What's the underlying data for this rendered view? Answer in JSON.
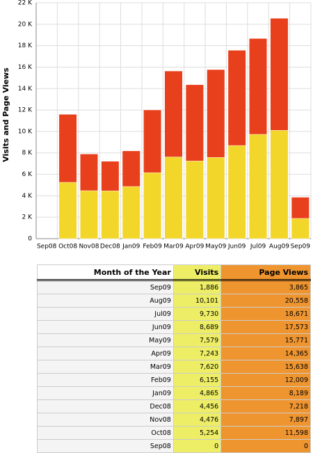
{
  "chart_data": {
    "type": "bar",
    "ylabel": "Visits and Page Views",
    "categories": [
      "Sep08",
      "Oct08",
      "Nov08",
      "Dec08",
      "Jan09",
      "Feb09",
      "Mar09",
      "Apr09",
      "May09",
      "Jun09",
      "Jul09",
      "Aug09",
      "Sep09"
    ],
    "series": [
      {
        "color": "#e8401c",
        "values": [
          0,
          11598,
          7897,
          7218,
          8189,
          12009,
          15638,
          14365,
          15771,
          17573,
          18671,
          20558,
          3865
        ]
      },
      {
        "color": "#f3d62a",
        "values": [
          0,
          5254,
          4476,
          4456,
          4865,
          6155,
          7620,
          7243,
          7579,
          8689,
          9730,
          10101,
          1886
        ]
      }
    ],
    "ylim": [
      0,
      22000
    ],
    "yticks": [
      0,
      {
        "value": 2000,
        "label": "2 K"
      },
      {
        "value": 4000,
        "label": "4 K"
      },
      {
        "value": 6000,
        "label": "6 K"
      },
      {
        "value": 8000,
        "label": "8 K"
      },
      {
        "value": 10000,
        "label": "10 K"
      },
      {
        "value": 12000,
        "label": "12 K"
      },
      {
        "value": 14000,
        "label": "14 K"
      },
      {
        "value": 16000,
        "label": "16 K"
      },
      {
        "value": 18000,
        "label": "18 K"
      },
      {
        "value": 20000,
        "label": "20 K"
      },
      {
        "value": 22000,
        "label": "22 K"
      }
    ],
    "grid": true
  },
  "table": {
    "header": [
      "Month of the Year",
      "Visits",
      "Page Views"
    ],
    "rows": [
      [
        "Sep09",
        "1,886",
        "3,865"
      ],
      [
        "Aug09",
        "10,101",
        "20,558"
      ],
      [
        "Jul09",
        "9,730",
        "18,671"
      ],
      [
        "Jun09",
        "8,689",
        "17,573"
      ],
      [
        "May09",
        "7,579",
        "15,771"
      ],
      [
        "Apr09",
        "7,243",
        "14,365"
      ],
      [
        "Mar09",
        "7,620",
        "15,638"
      ],
      [
        "Feb09",
        "6,155",
        "12,009"
      ],
      [
        "Jan09",
        "4,865",
        "8,189"
      ],
      [
        "Dec08",
        "4,456",
        "7,218"
      ],
      [
        "Nov08",
        "4,476",
        "7,897"
      ],
      [
        "Oct08",
        "5,254",
        "11,598"
      ],
      [
        "Sep08",
        "0",
        "0"
      ]
    ]
  }
}
